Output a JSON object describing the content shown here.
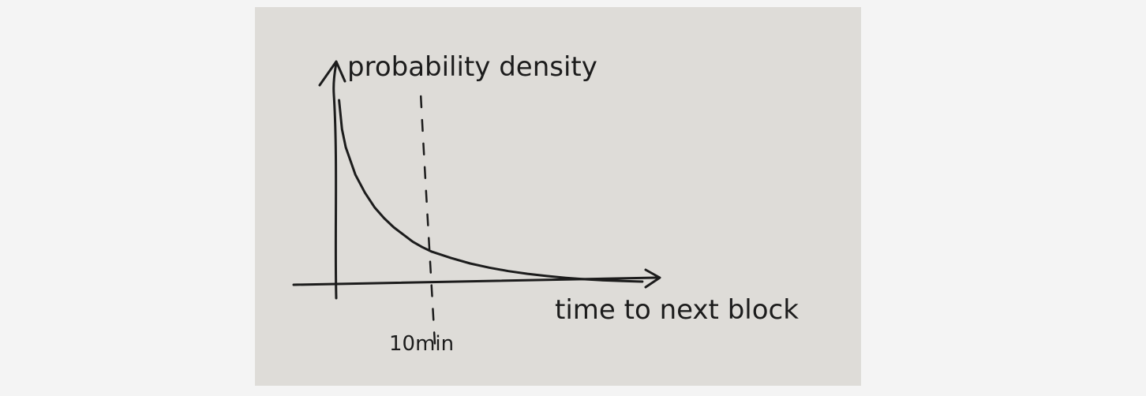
{
  "chart_data": {
    "type": "line",
    "title": "",
    "ylabel": "probability density",
    "xlabel": "time to next block",
    "x_ticks": [
      {
        "value": 10,
        "label": "10min"
      }
    ],
    "series": [
      {
        "name": "",
        "description_visible": false,
        "x": [
          0.3,
          0.6,
          1,
          2,
          3,
          4,
          5,
          6,
          7,
          8,
          9,
          10,
          12,
          14,
          16,
          18,
          20,
          22,
          24,
          26,
          28,
          30,
          32
        ],
        "y": [
          1.0,
          0.84,
          0.74,
          0.59,
          0.49,
          0.41,
          0.35,
          0.3,
          0.26,
          0.22,
          0.19,
          0.165,
          0.13,
          0.1,
          0.077,
          0.058,
          0.043,
          0.031,
          0.021,
          0.013,
          0.007,
          0.003,
          0.0
        ]
      }
    ],
    "reference_lines": [
      {
        "orientation": "vertical",
        "x": 10,
        "style": "dashed"
      }
    ],
    "xlim": [
      0,
      33
    ],
    "ylim": [
      0,
      1.1
    ],
    "grid": false,
    "legend": "none",
    "colors": {
      "ink": "#1c1c1c",
      "paper": "#dedcd8",
      "background": "#f4f4f4"
    }
  }
}
